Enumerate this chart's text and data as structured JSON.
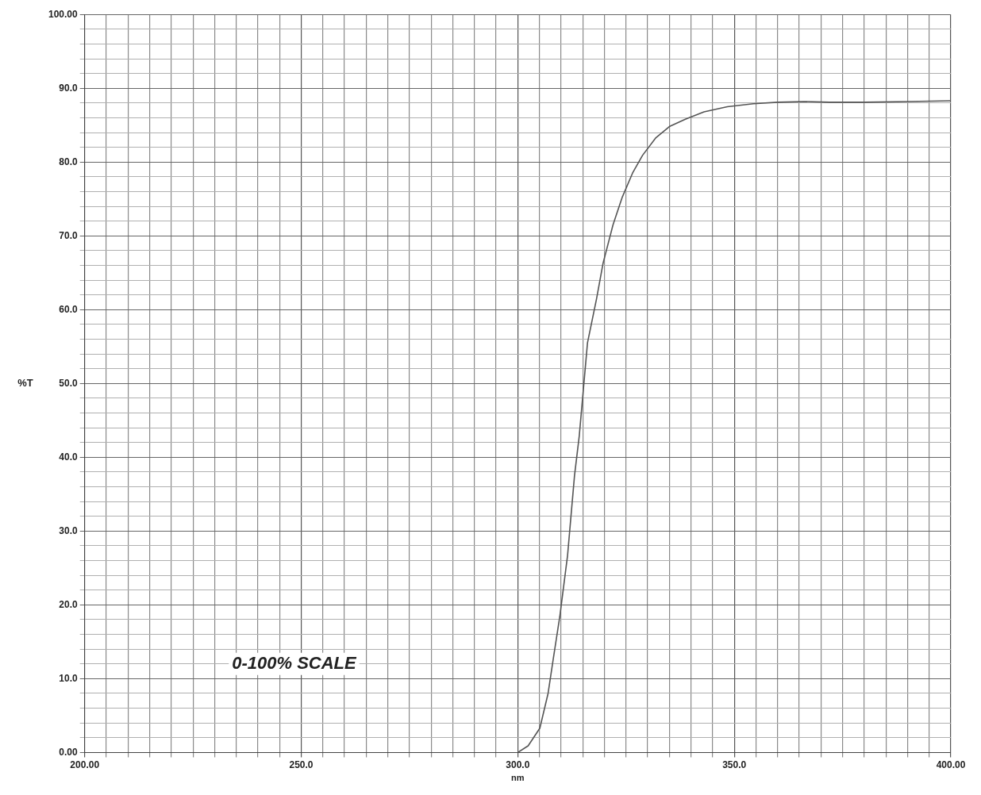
{
  "chart_data": {
    "type": "line",
    "xlabel": "nm",
    "ylabel": "%T",
    "annotations": [
      "0-100% SCALE"
    ],
    "xlim": [
      200,
      400
    ],
    "xticks": [
      {
        "value": 200,
        "label": "200.00"
      },
      {
        "value": 205,
        "label": null
      },
      {
        "value": 210,
        "label": null
      },
      {
        "value": 215,
        "label": null
      },
      {
        "value": 220,
        "label": null
      },
      {
        "value": 225,
        "label": null
      },
      {
        "value": 230,
        "label": null
      },
      {
        "value": 235,
        "label": null
      },
      {
        "value": 240,
        "label": null
      },
      {
        "value": 245,
        "label": null
      },
      {
        "value": 250,
        "label": "250.0"
      },
      {
        "value": 255,
        "label": null
      },
      {
        "value": 260,
        "label": null
      },
      {
        "value": 265,
        "label": null
      },
      {
        "value": 270,
        "label": null
      },
      {
        "value": 275,
        "label": null
      },
      {
        "value": 280,
        "label": null
      },
      {
        "value": 285,
        "label": null
      },
      {
        "value": 290,
        "label": null
      },
      {
        "value": 295,
        "label": null
      },
      {
        "value": 300,
        "label": "300.0"
      },
      {
        "value": 305,
        "label": null
      },
      {
        "value": 310,
        "label": null
      },
      {
        "value": 315,
        "label": null
      },
      {
        "value": 320,
        "label": null
      },
      {
        "value": 325,
        "label": null
      },
      {
        "value": 330,
        "label": null
      },
      {
        "value": 335,
        "label": null
      },
      {
        "value": 340,
        "label": null
      },
      {
        "value": 345,
        "label": null
      },
      {
        "value": 350,
        "label": "350.0"
      },
      {
        "value": 355,
        "label": null
      },
      {
        "value": 360,
        "label": null
      },
      {
        "value": 365,
        "label": null
      },
      {
        "value": 370,
        "label": null
      },
      {
        "value": 375,
        "label": null
      },
      {
        "value": 380,
        "label": null
      },
      {
        "value": 385,
        "label": null
      },
      {
        "value": 390,
        "label": null
      },
      {
        "value": 395,
        "label": null
      },
      {
        "value": 400,
        "label": "400.00"
      }
    ],
    "ylim": [
      0,
      100
    ],
    "yticks": [
      {
        "value": 0,
        "label": "0.00"
      },
      {
        "value": 2,
        "label": null
      },
      {
        "value": 4,
        "label": null
      },
      {
        "value": 6,
        "label": null
      },
      {
        "value": 8,
        "label": null
      },
      {
        "value": 10,
        "label": "10.0"
      },
      {
        "value": 12,
        "label": null
      },
      {
        "value": 14,
        "label": null
      },
      {
        "value": 16,
        "label": null
      },
      {
        "value": 18,
        "label": null
      },
      {
        "value": 20,
        "label": "20.0"
      },
      {
        "value": 22,
        "label": null
      },
      {
        "value": 24,
        "label": null
      },
      {
        "value": 26,
        "label": null
      },
      {
        "value": 28,
        "label": null
      },
      {
        "value": 30,
        "label": "30.0"
      },
      {
        "value": 32,
        "label": null
      },
      {
        "value": 34,
        "label": null
      },
      {
        "value": 36,
        "label": null
      },
      {
        "value": 38,
        "label": null
      },
      {
        "value": 40,
        "label": "40.0"
      },
      {
        "value": 42,
        "label": null
      },
      {
        "value": 44,
        "label": null
      },
      {
        "value": 46,
        "label": null
      },
      {
        "value": 48,
        "label": null
      },
      {
        "value": 50,
        "label": "50.0"
      },
      {
        "value": 52,
        "label": null
      },
      {
        "value": 54,
        "label": null
      },
      {
        "value": 56,
        "label": null
      },
      {
        "value": 58,
        "label": null
      },
      {
        "value": 60,
        "label": "60.0"
      },
      {
        "value": 62,
        "label": null
      },
      {
        "value": 64,
        "label": null
      },
      {
        "value": 66,
        "label": null
      },
      {
        "value": 68,
        "label": null
      },
      {
        "value": 70,
        "label": "70.0"
      },
      {
        "value": 72,
        "label": null
      },
      {
        "value": 74,
        "label": null
      },
      {
        "value": 76,
        "label": null
      },
      {
        "value": 78,
        "label": null
      },
      {
        "value": 80,
        "label": "80.0"
      },
      {
        "value": 82,
        "label": null
      },
      {
        "value": 84,
        "label": null
      },
      {
        "value": 86,
        "label": null
      },
      {
        "value": 88,
        "label": null
      },
      {
        "value": 90,
        "label": "90.0"
      },
      {
        "value": 92,
        "label": null
      },
      {
        "value": 94,
        "label": null
      },
      {
        "value": 96,
        "label": null
      },
      {
        "value": 98,
        "label": null
      },
      {
        "value": 100,
        "label": "100.00"
      }
    ],
    "grid": true,
    "marker": "none",
    "line_style": "solid",
    "series": [
      {
        "color": "#555555",
        "x": [
          300.0,
          302.4,
          305.1,
          307.0,
          308.2,
          309.7,
          311.5,
          313.1,
          314.2,
          316.1,
          318.2,
          319.7,
          322.0,
          324.1,
          326.5,
          328.8,
          331.9,
          335.0,
          338.7,
          343.0,
          348.4,
          354.4,
          360.0,
          366.0,
          372.0,
          380.0,
          390.0,
          400.0
        ],
        "values": [
          0,
          0.9,
          3.3,
          8.0,
          12.7,
          18.4,
          26.7,
          37.5,
          42.9,
          55.5,
          61.5,
          66.3,
          71.5,
          75.2,
          78.5,
          80.9,
          83.3,
          84.8,
          85.8,
          86.8,
          87.5,
          87.9,
          88.1,
          88.2,
          88.1,
          88.1,
          88.2,
          88.3
        ]
      }
    ]
  }
}
